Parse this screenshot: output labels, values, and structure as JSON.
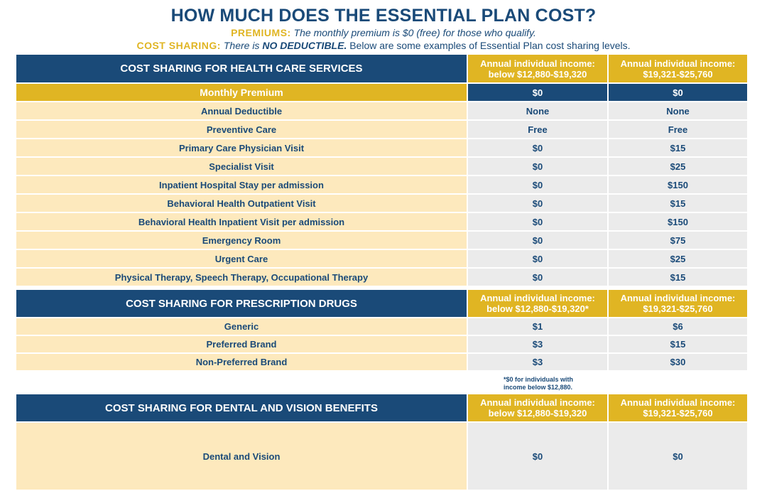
{
  "header": {
    "title": "HOW MUCH DOES THE ESSENTIAL PLAN COST?",
    "premiums_label": "PREMIUMS:",
    "premiums_text": "The monthly premium is $0 (free) for those who qualify.",
    "cost_sharing_label": "COST SHARING:",
    "cost_sharing_text_1": "There is",
    "cost_sharing_bold": "NO DEDUCTIBLE.",
    "cost_sharing_text_2": "Below are some examples of Essential Plan cost sharing levels."
  },
  "health": {
    "title": "COST SHARING FOR HEALTH CARE SERVICES",
    "col1": "Annual individual income:\nbelow $12,880-$19,320",
    "col2": "Annual individual income:\n$19,321-$25,760",
    "premium": {
      "label": "Monthly Premium",
      "v1": "$0",
      "v2": "$0"
    },
    "rows": [
      {
        "label": "Annual Deductible",
        "v1": "None",
        "v2": "None"
      },
      {
        "label": "Preventive Care",
        "v1": "Free",
        "v2": "Free"
      },
      {
        "label": "Primary Care Physician Visit",
        "v1": "$0",
        "v2": "$15"
      },
      {
        "label": "Specialist Visit",
        "v1": "$0",
        "v2": "$25"
      },
      {
        "label": "Inpatient Hospital Stay per admission",
        "v1": "$0",
        "v2": "$150"
      },
      {
        "label": "Behavioral Health Outpatient Visit",
        "v1": "$0",
        "v2": "$15"
      },
      {
        "label": "Behavioral Health Inpatient Visit per admission",
        "v1": "$0",
        "v2": "$150"
      },
      {
        "label": "Emergency Room",
        "v1": "$0",
        "v2": "$75"
      },
      {
        "label": "Urgent Care",
        "v1": "$0",
        "v2": "$25"
      },
      {
        "label": "Physical Therapy, Speech Therapy, Occupational Therapy",
        "v1": "$0",
        "v2": "$15"
      }
    ]
  },
  "drugs": {
    "title": "COST SHARING FOR PRESCRIPTION DRUGS",
    "col1": "Annual individual income:\nbelow $12,880-$19,320*",
    "col2": "Annual individual income:\n$19,321-$25,760",
    "rows": [
      {
        "label": "Generic",
        "v1": "$1",
        "v2": "$6"
      },
      {
        "label": "Preferred Brand",
        "v1": "$3",
        "v2": "$15"
      },
      {
        "label": "Non-Preferred Brand",
        "v1": "$3",
        "v2": "$30"
      }
    ],
    "footnote": "*$0 for individuals with\nincome below $12,880."
  },
  "dental": {
    "title": "COST SHARING FOR DENTAL AND VISION BENEFITS",
    "col1": "Annual individual income:\nbelow $12,880-$19,320",
    "col2": "Annual individual income:\n$19,321-$25,760",
    "rows": [
      {
        "label": "Dental and Vision",
        "v1": "$0",
        "v2": "$0"
      }
    ]
  }
}
